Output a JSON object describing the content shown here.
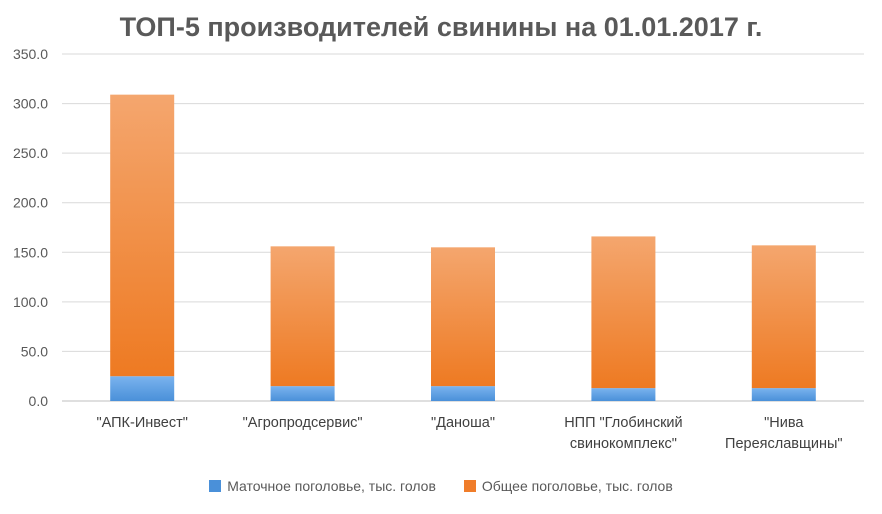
{
  "chart_data": {
    "type": "bar",
    "stacked": true,
    "title": "ТОП-5 производителей свинины на 01.01.2017 г.",
    "categories": [
      [
        "\"АПК-Инвест\""
      ],
      [
        "\"Агропродсервис\""
      ],
      [
        "\"Даноша\""
      ],
      [
        "НПП \"Глобинский",
        "свинокомплекс\""
      ],
      [
        "\"Нива",
        "Переяславщины\""
      ]
    ],
    "series": [
      {
        "name": "Маточное поголовье, тыс. голов",
        "color": "#4a90d9",
        "values": [
          25,
          15,
          15,
          13,
          13
        ]
      },
      {
        "name": "Общее поголовье, тыс. голов",
        "color": "#f07d2a",
        "values": [
          284,
          141,
          140,
          153,
          144
        ]
      }
    ],
    "ylim": [
      0,
      350
    ],
    "yticks": [
      "0.0",
      "50.0",
      "100.0",
      "150.0",
      "200.0",
      "250.0",
      "300.0",
      "350.0"
    ],
    "grid": true,
    "legend_position": "bottom"
  }
}
